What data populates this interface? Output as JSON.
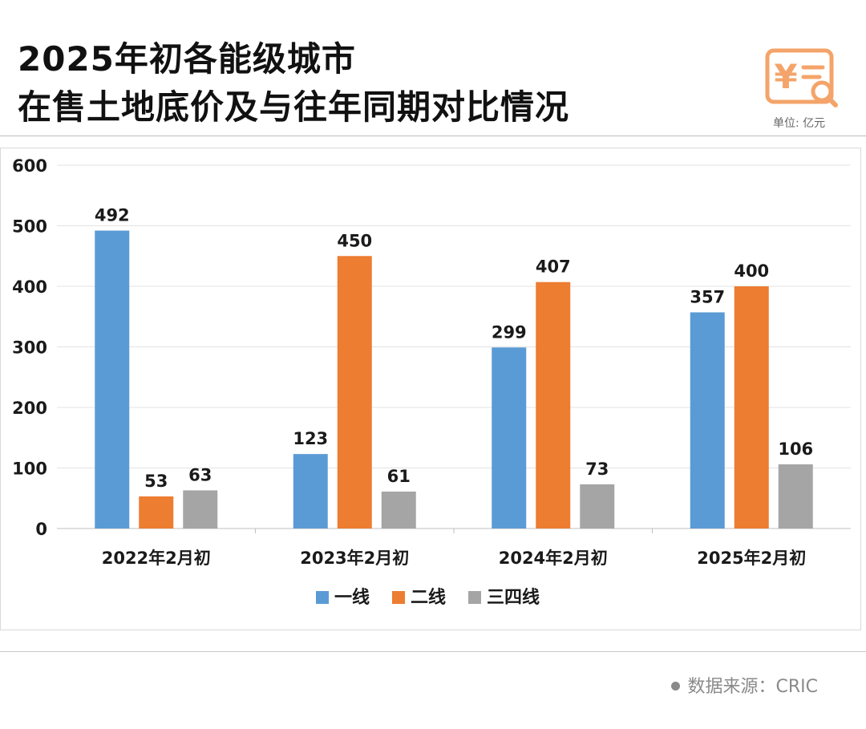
{
  "title": {
    "line1": "2025年初各能级城市",
    "line2": "在售土地底价及与往年同期对比情况"
  },
  "unit_label": "单位: 亿元",
  "icon": "yuan-document-search-icon",
  "source": {
    "label": "数据来源：CRIC"
  },
  "colors": {
    "tier1": "#5b9bd5",
    "tier2": "#ed7d31",
    "tier34": "#a5a5a5",
    "accent": "#f4a46a"
  },
  "chart_data": {
    "type": "bar",
    "categories": [
      "2022年2月初",
      "2023年2月初",
      "2024年2月初",
      "2025年2月初"
    ],
    "series": [
      {
        "name": "一线",
        "values": [
          492,
          123,
          299,
          357
        ]
      },
      {
        "name": "二线",
        "values": [
          53,
          450,
          407,
          400
        ]
      },
      {
        "name": "三四线",
        "values": [
          63,
          61,
          73,
          106
        ]
      }
    ],
    "ylim": [
      0,
      600
    ],
    "yticks": [
      0,
      100,
      200,
      300,
      400,
      500,
      600
    ],
    "grid": true,
    "legend": "bottom",
    "data_labels": true
  }
}
